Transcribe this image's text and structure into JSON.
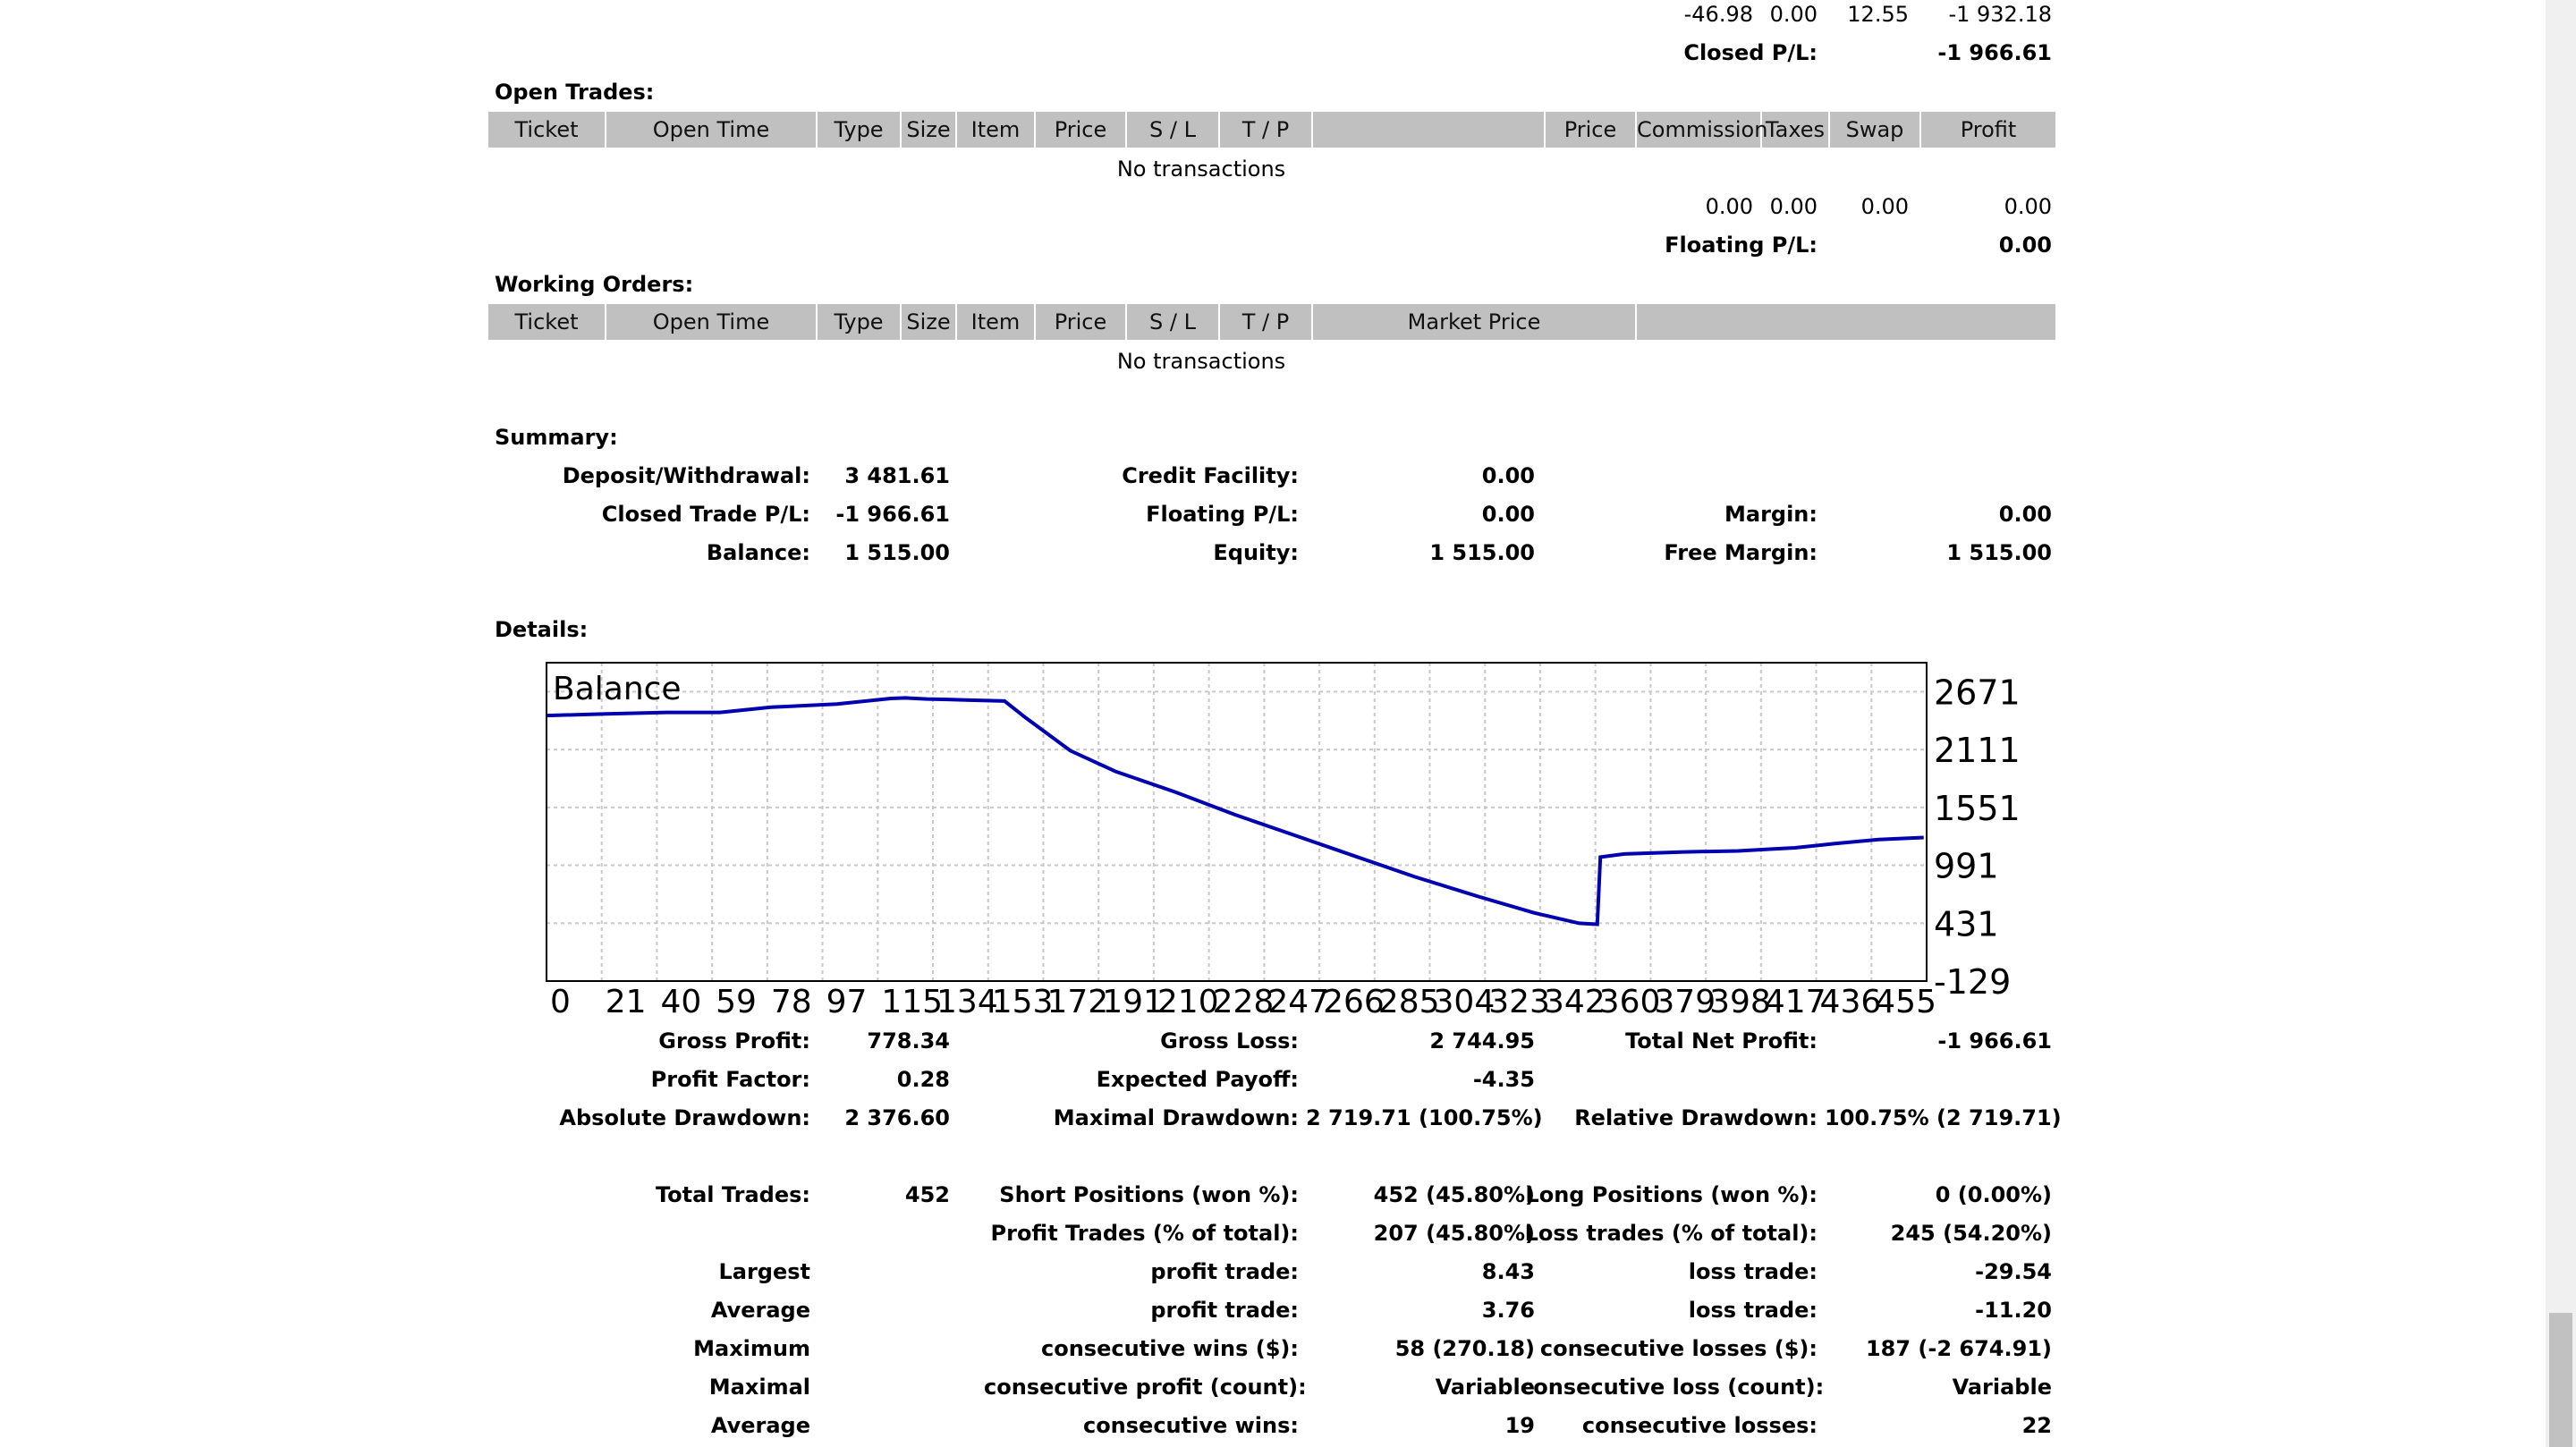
{
  "closed_totals": {
    "commission": "-46.98",
    "taxes": "0.00",
    "swap": "12.55",
    "profit": "-1 932.18",
    "label": "Closed P/L:",
    "value": "-1 966.61"
  },
  "open_trades": {
    "title": "Open Trades:",
    "headers": [
      "Ticket",
      "Open Time",
      "Type",
      "Size",
      "Item",
      "Price",
      "S / L",
      "T / P",
      "",
      "Price",
      "Commission",
      "Taxes",
      "Swap",
      "Profit"
    ],
    "empty": "No transactions",
    "totals": {
      "commission": "0.00",
      "taxes": "0.00",
      "swap": "0.00",
      "profit": "0.00"
    },
    "label": "Floating P/L:",
    "value": "0.00"
  },
  "working_orders": {
    "title": "Working Orders:",
    "headers": [
      "Ticket",
      "Open Time",
      "Type",
      "Size",
      "Item",
      "Price",
      "S / L",
      "T / P",
      "Market Price",
      ""
    ],
    "empty": "No transactions"
  },
  "summary": {
    "title": "Summary:",
    "deposit_label": "Deposit/Withdrawal:",
    "deposit": "3 481.61",
    "credit_label": "Credit Facility:",
    "credit": "0.00",
    "closed_label": "Closed Trade P/L:",
    "closed": "-1 966.61",
    "floating_label": "Floating P/L:",
    "floating": "0.00",
    "margin_label": "Margin:",
    "margin": "0.00",
    "balance_label": "Balance:",
    "balance": "1 515.00",
    "equity_label": "Equity:",
    "equity": "1 515.00",
    "free_margin_label": "Free Margin:",
    "free_margin": "1 515.00"
  },
  "details": {
    "title": "Details:"
  },
  "chart_data": {
    "type": "line",
    "title": "Balance",
    "y_ticks": [
      "2671",
      "2111",
      "1551",
      "991",
      "431",
      "-129"
    ],
    "y_tick_values": [
      2671,
      2111,
      1551,
      991,
      431,
      -129
    ],
    "ylim": [
      -129,
      2951
    ],
    "x_ticks": [
      "0",
      "21",
      "40",
      "59",
      "78",
      "97",
      "115",
      "134",
      "153",
      "172",
      "191",
      "210",
      "228",
      "247",
      "266",
      "285",
      "304",
      "323",
      "342",
      "360",
      "379",
      "398",
      "417",
      "436",
      "455"
    ],
    "xlim": [
      0,
      461
    ],
    "grid": true,
    "series": [
      {
        "color": "#0000b0",
        "x": [
          0,
          20,
          40,
          58,
          75,
          97,
          115,
          120,
          127,
          134,
          140,
          153,
          160,
          175,
          190,
          210,
          230,
          250,
          270,
          290,
          310,
          330,
          345,
          351,
          352,
          360,
          370,
          380,
          398,
          410,
          417,
          430,
          445,
          460
        ],
        "y": [
          2440,
          2455,
          2470,
          2470,
          2520,
          2550,
          2605,
          2610,
          2600,
          2595,
          2590,
          2580,
          2420,
          2100,
          1900,
          1700,
          1480,
          1280,
          1080,
          880,
          700,
          530,
          430,
          420,
          1070,
          1100,
          1110,
          1120,
          1130,
          1150,
          1160,
          1200,
          1240,
          1260
        ]
      }
    ]
  },
  "stats": {
    "gross_profit_label": "Gross Profit:",
    "gross_profit": "778.34",
    "gross_loss_label": "Gross Loss:",
    "gross_loss": "2 744.95",
    "total_net_label": "Total Net Profit:",
    "total_net": "-1 966.61",
    "profit_factor_label": "Profit Factor:",
    "profit_factor": "0.28",
    "expected_payoff_label": "Expected Payoff:",
    "expected_payoff": "-4.35",
    "abs_dd_label": "Absolute Drawdown:",
    "abs_dd": "2 376.60",
    "max_dd_label": "Maximal Drawdown:",
    "max_dd": "2 719.71 (100.75%)",
    "rel_dd_label": "Relative Drawdown:",
    "rel_dd": "100.75% (2 719.71)",
    "total_trades_label": "Total Trades:",
    "total_trades": "452",
    "short_label": "Short Positions (won %):",
    "short": "452 (45.80%)",
    "long_label": "Long Positions (won %):",
    "long": "0 (0.00%)",
    "profit_trades_label": "Profit Trades (% of total):",
    "profit_trades": "207 (45.80%)",
    "loss_trades_label": "Loss trades (% of total):",
    "loss_trades": "245 (54.20%)",
    "largest_label": "Largest",
    "largest_profit_label": "profit trade:",
    "largest_profit": "8.43",
    "largest_loss_label": "loss trade:",
    "largest_loss": "-29.54",
    "average_label": "Average",
    "average_profit_label": "profit trade:",
    "average_profit": "3.76",
    "average_loss_label": "loss trade:",
    "average_loss": "-11.20",
    "maximum_label": "Maximum",
    "max_cons_wins_label": "consecutive wins ($):",
    "max_cons_wins": "58 (270.18)",
    "max_cons_losses_label": "consecutive losses ($):",
    "max_cons_losses": "187 (-2 674.91)",
    "maximal_label": "Maximal",
    "maximal_cons_profit_label": "consecutive profit (count):",
    "maximal_cons_profit": "Variable",
    "maximal_cons_loss_label": "consecutive loss (count):",
    "maximal_cons_loss": "Variable",
    "average2_label": "Average",
    "avg_cons_wins_label": "consecutive wins:",
    "avg_cons_wins": "19",
    "avg_cons_losses_label": "consecutive losses:",
    "avg_cons_losses": "22"
  }
}
